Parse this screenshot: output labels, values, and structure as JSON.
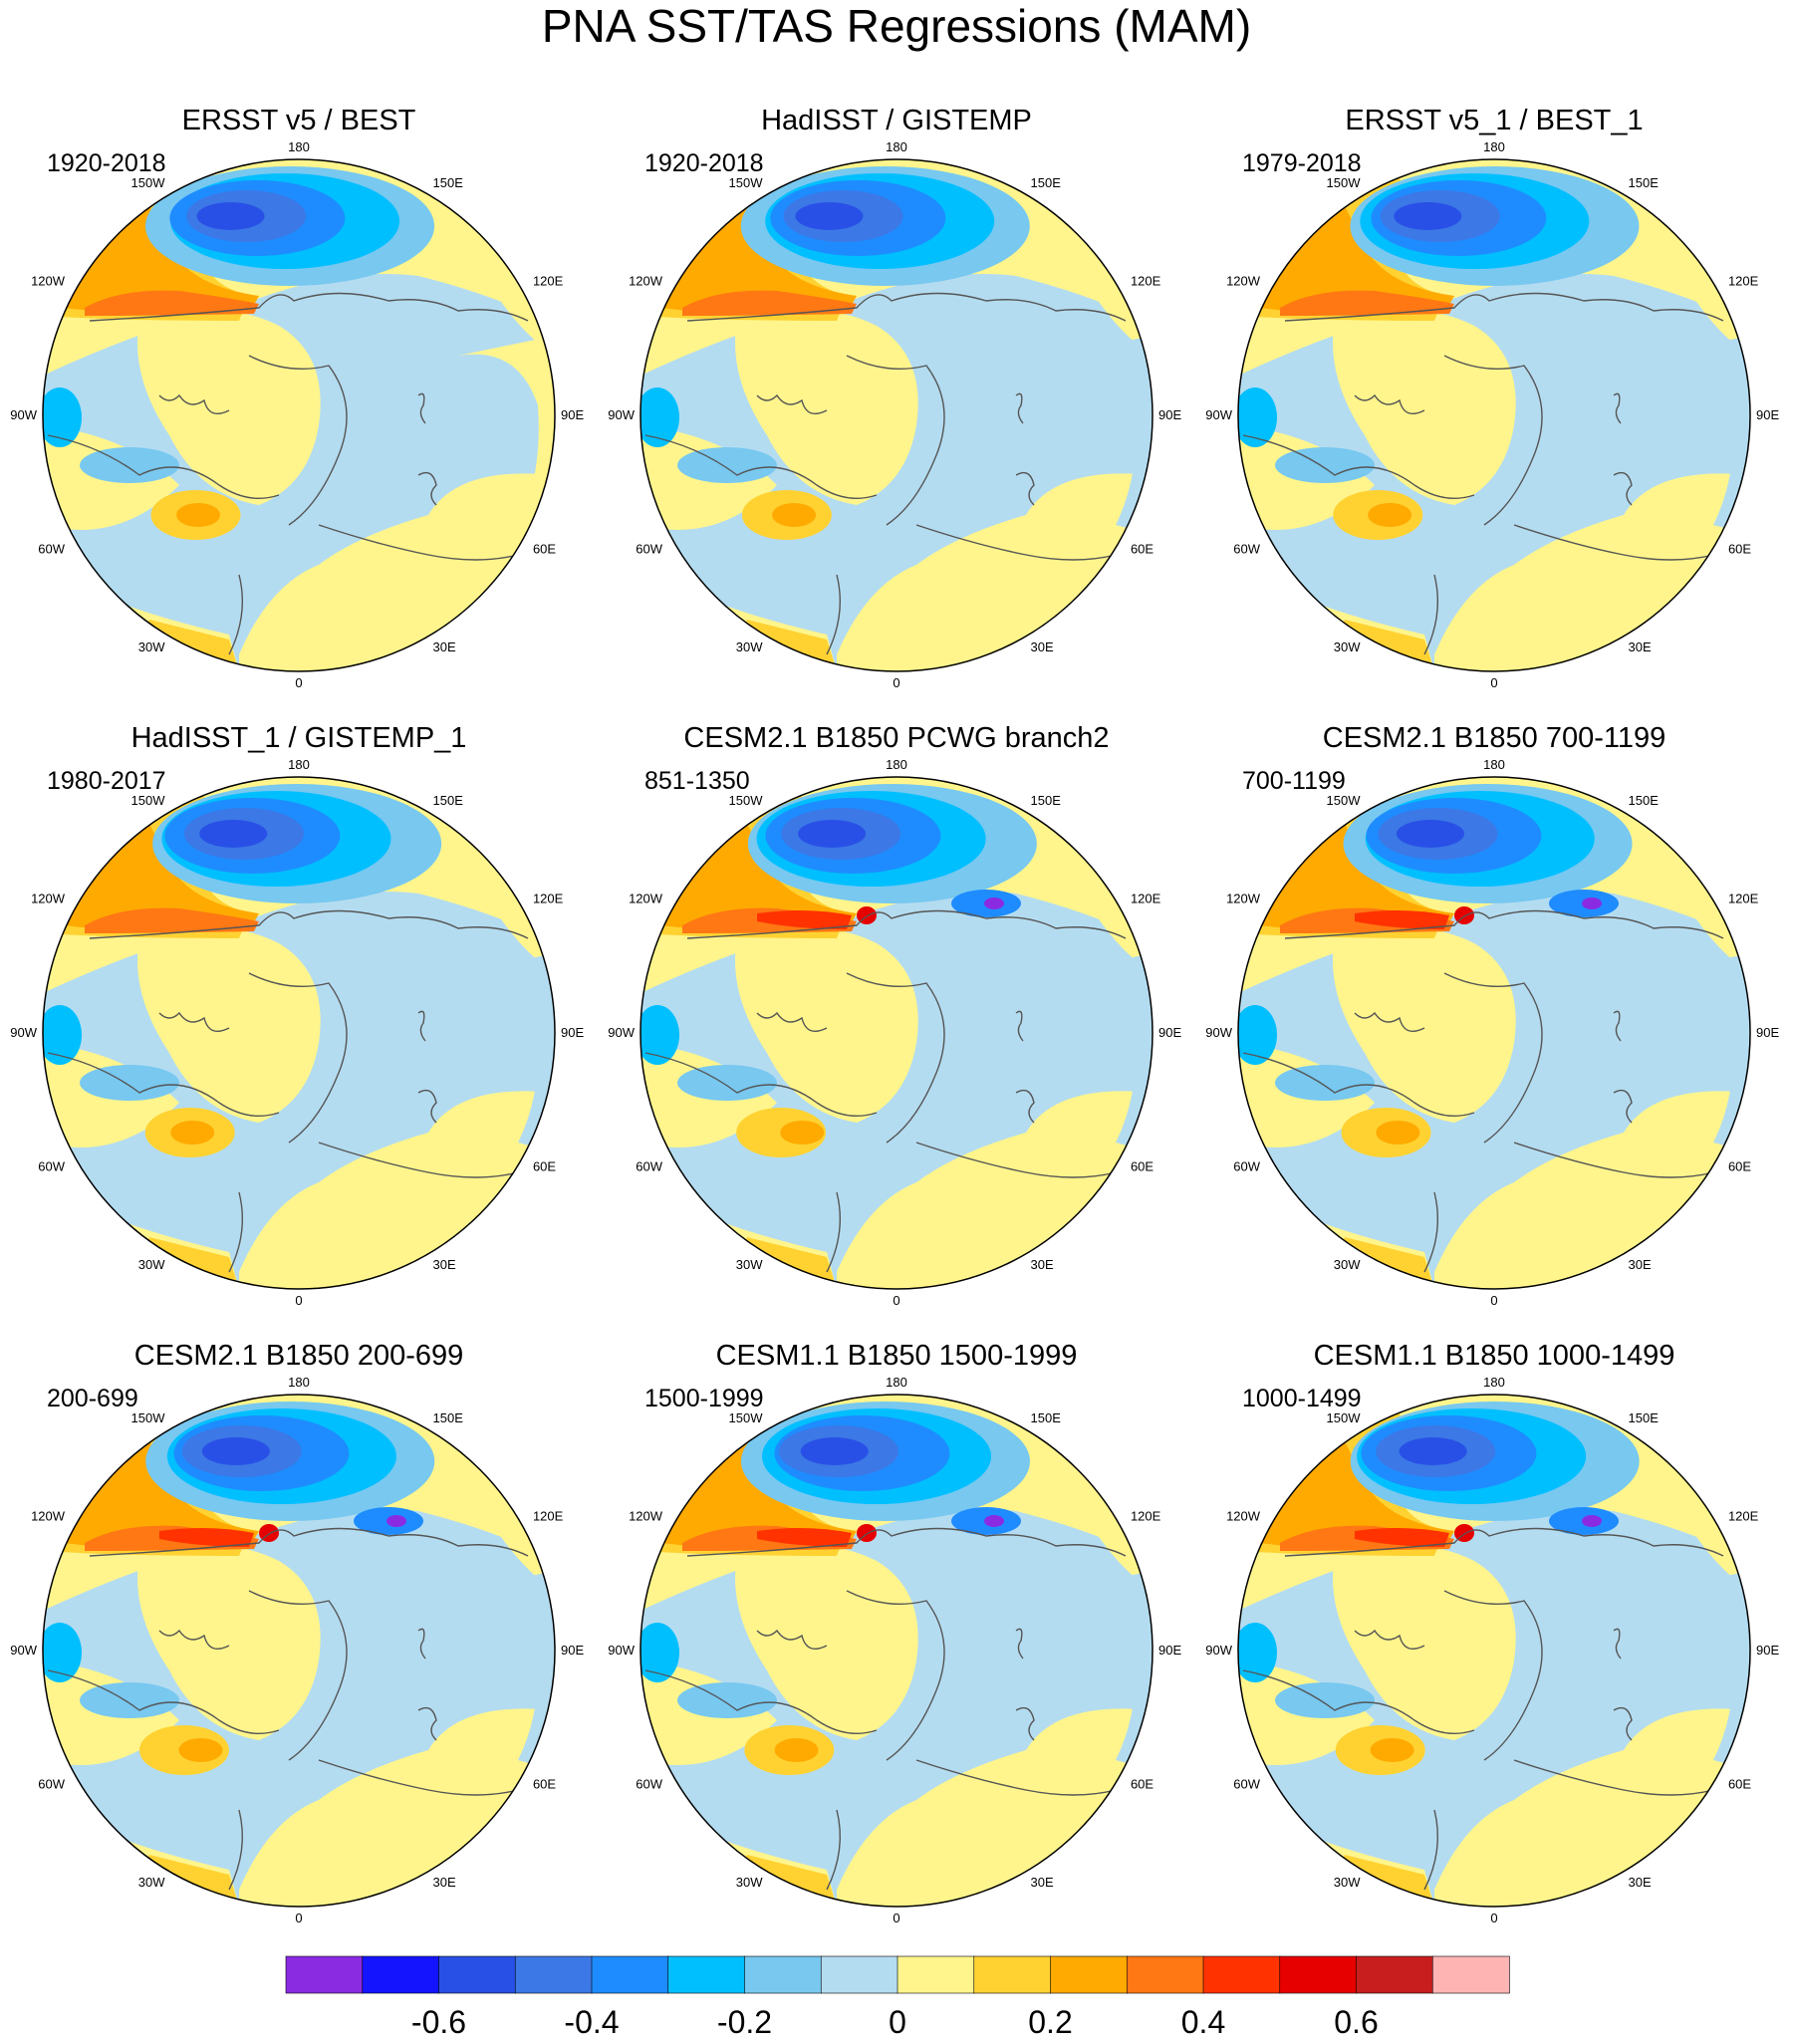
{
  "figure": {
    "title": "PNA SST/TAS Regressions (MAM)"
  },
  "longitude_labels": [
    "180",
    "150E",
    "120E",
    "90E",
    "60E",
    "30E",
    "0",
    "30W",
    "60W",
    "90W",
    "120W",
    "150W"
  ],
  "panels": [
    {
      "title": "ERSST v5 / BEST",
      "period": "1920-2018"
    },
    {
      "title": "HadISST / GISTEMP",
      "period": "1920-2018"
    },
    {
      "title": "ERSST v5_1 / BEST_1",
      "period": "1979-2018"
    },
    {
      "title": "HadISST_1 / GISTEMP_1",
      "period": "1980-2017"
    },
    {
      "title": "CESM2.1 B1850 PCWG branch2",
      "period": "851-1350"
    },
    {
      "title": "CESM2.1 B1850 700-1199",
      "period": "700-1199"
    },
    {
      "title": "CESM2.1 B1850 200-699",
      "period": "200-699"
    },
    {
      "title": "CESM1.1 B1850 1500-1999",
      "period": "1500-1999"
    },
    {
      "title": "CESM1.1 B1850 1000-1499",
      "period": "1000-1499"
    }
  ],
  "chart_data": {
    "type": "heatmap",
    "projection": "north-polar-stereographic",
    "title": "PNA SST/TAS Regressions (MAM)",
    "colorbar": {
      "placement": "bottom",
      "tick_labels": [
        "-0.6",
        "-0.4",
        "-0.2",
        "0",
        "0.2",
        "0.4",
        "0.6"
      ],
      "tick_values": [
        -0.6,
        -0.4,
        -0.2,
        0,
        0.2,
        0.4,
        0.6
      ],
      "bins": [
        {
          "min": null,
          "max": -0.7,
          "color": "#8a2be2"
        },
        {
          "min": -0.7,
          "max": -0.6,
          "color": "#1414ff"
        },
        {
          "min": -0.6,
          "max": -0.5,
          "color": "#2850e6"
        },
        {
          "min": -0.5,
          "max": -0.4,
          "color": "#3c78e6"
        },
        {
          "min": -0.4,
          "max": -0.3,
          "color": "#1e8cff"
        },
        {
          "min": -0.3,
          "max": -0.2,
          "color": "#00bfff"
        },
        {
          "min": -0.2,
          "max": -0.1,
          "color": "#78c8f0"
        },
        {
          "min": -0.1,
          "max": 0.0,
          "color": "#b4dcf0"
        },
        {
          "min": 0.0,
          "max": 0.1,
          "color": "#fff58c"
        },
        {
          "min": 0.1,
          "max": 0.2,
          "color": "#ffd232"
        },
        {
          "min": 0.2,
          "max": 0.3,
          "color": "#ffaa00"
        },
        {
          "min": 0.3,
          "max": 0.4,
          "color": "#ff7814"
        },
        {
          "min": 0.4,
          "max": 0.5,
          "color": "#ff3200"
        },
        {
          "min": 0.5,
          "max": 0.6,
          "color": "#e60000"
        },
        {
          "min": 0.6,
          "max": 0.7,
          "color": "#c81e1e"
        },
        {
          "min": 0.7,
          "max": null,
          "color": "#ffb4b4"
        }
      ]
    },
    "panels_count": 9,
    "panel_grid": "3x3"
  }
}
